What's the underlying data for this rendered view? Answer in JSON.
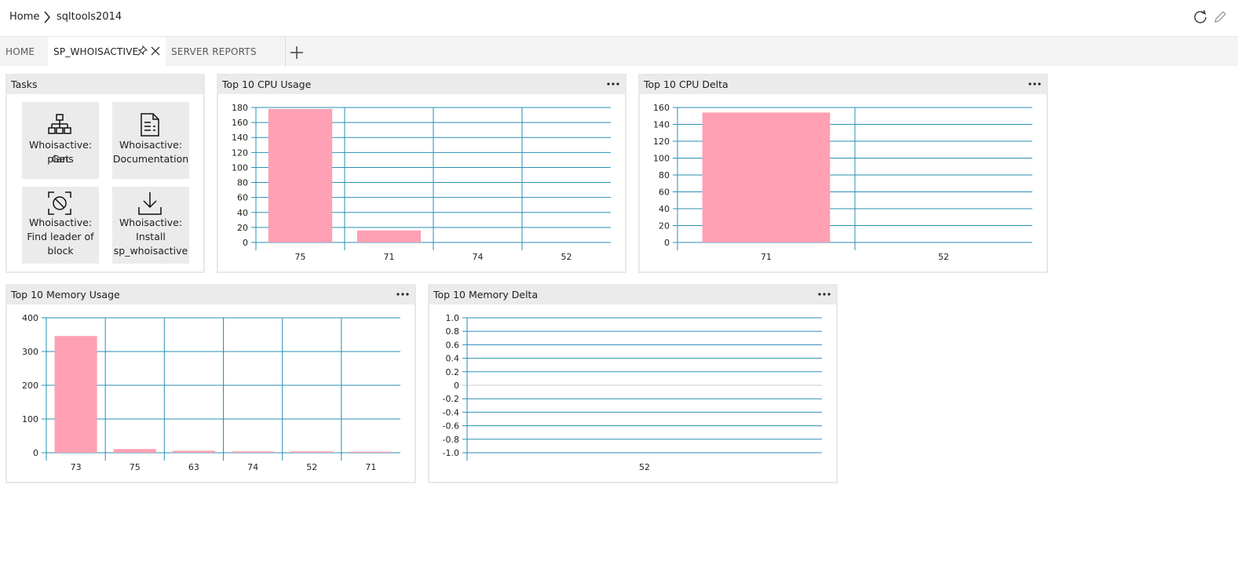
{
  "breadcrumb": {
    "home": "Home",
    "current": "sqltools2014"
  },
  "icons": {
    "refresh": "refresh-icon",
    "edit": "pencil-icon",
    "pin": "pin-icon",
    "close": "close-icon",
    "add": "plus-icon",
    "more": "more-icon"
  },
  "tabs": [
    {
      "label": "HOME",
      "active": false
    },
    {
      "label": "SP_WHOISACTIVE",
      "active": true
    },
    {
      "label": "SERVER REPORTS",
      "active": false
    }
  ],
  "tasks": {
    "title": "Tasks",
    "items": [
      {
        "icon": "hierarchy-icon",
        "line1": "Whoisactive: Get",
        "line2": "plans",
        "line3": ""
      },
      {
        "icon": "document-icon",
        "line1": "Whoisactive:",
        "line2": "Documentation",
        "line3": ""
      },
      {
        "icon": "block-focus-icon",
        "line1": "Whoisactive:",
        "line2": "Find leader of",
        "line3": "block"
      },
      {
        "icon": "download-icon",
        "line1": "Whoisactive:",
        "line2": "Install",
        "line3": "sp_whoisactive"
      }
    ]
  },
  "colors": {
    "bar": "#ffa0b4",
    "grid": "#2a8fb5",
    "zero": "#c8c8c8"
  },
  "chart_data": [
    {
      "type": "bar",
      "title": "Top 10 CPU Usage",
      "categories": [
        "75",
        "71",
        "74",
        "52"
      ],
      "values": [
        178,
        16,
        0,
        0
      ],
      "ylim": [
        0,
        180
      ],
      "yticks": [
        0,
        20,
        40,
        60,
        80,
        100,
        120,
        140,
        160,
        180
      ],
      "grid": true,
      "legend": "none"
    },
    {
      "type": "bar",
      "title": "Top 10 CPU Delta",
      "categories": [
        "71",
        "52"
      ],
      "values": [
        154,
        0
      ],
      "ylim": [
        0,
        160
      ],
      "yticks": [
        0,
        20,
        40,
        60,
        80,
        100,
        120,
        140,
        160
      ],
      "grid": true,
      "legend": "none"
    },
    {
      "type": "bar",
      "title": "Top 10 Memory Usage",
      "categories": [
        "73",
        "75",
        "63",
        "74",
        "52",
        "71"
      ],
      "values": [
        346,
        11,
        6,
        4,
        4,
        3
      ],
      "ylim": [
        0,
        400
      ],
      "yticks": [
        0,
        100,
        200,
        300,
        400
      ],
      "grid": true,
      "legend": "none"
    },
    {
      "type": "bar",
      "title": "Top 10 Memory Delta",
      "categories": [
        "52"
      ],
      "values": [
        0
      ],
      "ylim": [
        -1.0,
        1.0
      ],
      "yticks": [
        "-1.0",
        "-0.8",
        "-0.6",
        "-0.4",
        "-0.2",
        "0",
        "0.2",
        "0.4",
        "0.6",
        "0.8",
        "1.0"
      ],
      "grid": true,
      "legend": "none"
    }
  ]
}
